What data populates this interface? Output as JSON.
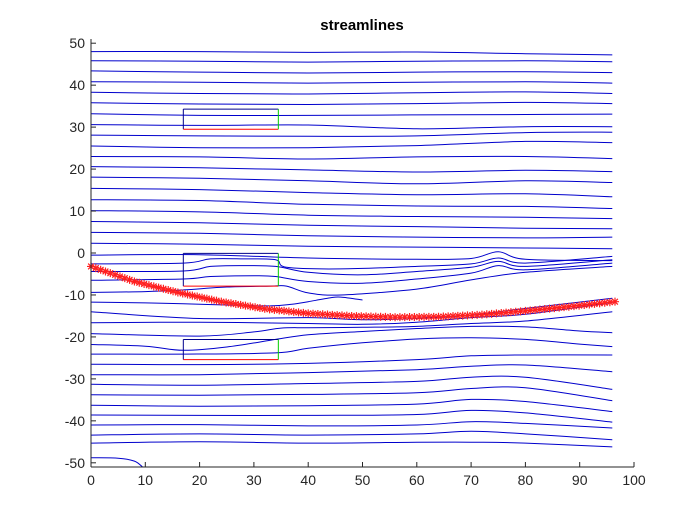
{
  "chart_data": {
    "type": "line",
    "title": "streamlines",
    "xlabel": "",
    "ylabel": "",
    "xlim": [
      0,
      100
    ],
    "ylim": [
      -51,
      51
    ],
    "grid": false,
    "x_ticks": [
      "0",
      "10",
      "20",
      "30",
      "40",
      "50",
      "60",
      "70",
      "80",
      "90",
      "100"
    ],
    "y_ticks": [
      "50",
      "40",
      "30",
      "20",
      "10",
      "0",
      "-10",
      "-20",
      "-30",
      "-40",
      "-50"
    ],
    "colors": {
      "streamline": "#0000cc",
      "path_marker": "#ff2020",
      "box_edge": "#00008b",
      "box_bottom": "#ff0000",
      "box_right": "#00cc00",
      "axes": "#262626"
    },
    "streamlines": [
      {
        "x": [
          0,
          20,
          40,
          60,
          80,
          96
        ],
        "y": [
          48,
          48,
          47.8,
          47.9,
          47.5,
          47.2
        ]
      },
      {
        "x": [
          0,
          20,
          40,
          60,
          80,
          96
        ],
        "y": [
          45.8,
          45.7,
          45.5,
          45.7,
          45.8,
          45.6
        ]
      },
      {
        "x": [
          0,
          20,
          40,
          60,
          80,
          96
        ],
        "y": [
          43.4,
          43.1,
          42.9,
          43.1,
          43.2,
          43.0
        ]
      },
      {
        "x": [
          0,
          20,
          40,
          60,
          80,
          96
        ],
        "y": [
          40.8,
          40.7,
          40.5,
          40.7,
          40.8,
          40.5
        ]
      },
      {
        "x": [
          0,
          20,
          40,
          60,
          80,
          96
        ],
        "y": [
          38.3,
          38.0,
          37.9,
          38.2,
          38.4,
          38.0
        ]
      },
      {
        "x": [
          0,
          20,
          40,
          60,
          80,
          96
        ],
        "y": [
          35.8,
          35.5,
          35.4,
          35.6,
          35.9,
          35.6
        ]
      },
      {
        "x": [
          0,
          20,
          40,
          60,
          80,
          96
        ],
        "y": [
          33.2,
          32.8,
          32.8,
          32.9,
          33.0,
          33.1
        ]
      },
      {
        "x": [
          0,
          20,
          40,
          60,
          80,
          96
        ],
        "y": [
          30.6,
          30.4,
          30.5,
          29.6,
          30.1,
          30.1
        ]
      },
      {
        "x": [
          0,
          20,
          40,
          60,
          80,
          96
        ],
        "y": [
          28.1,
          27.9,
          27.8,
          27.9,
          28.7,
          28.8
        ]
      },
      {
        "x": [
          0,
          20,
          40,
          60,
          80,
          96
        ],
        "y": [
          25.5,
          25.1,
          25.1,
          25.6,
          26.6,
          26.3
        ]
      },
      {
        "x": [
          0,
          20,
          40,
          60,
          80,
          96
        ],
        "y": [
          23.0,
          22.9,
          22.4,
          22.9,
          23.0,
          22.5
        ]
      },
      {
        "x": [
          0,
          20,
          40,
          60,
          80,
          96
        ],
        "y": [
          20.6,
          20.3,
          19.8,
          19.3,
          19.7,
          19.4
        ]
      },
      {
        "x": [
          0,
          20,
          40,
          60,
          80,
          96
        ],
        "y": [
          18.1,
          17.8,
          17.2,
          16.5,
          17.2,
          16.8
        ]
      },
      {
        "x": [
          0,
          20,
          40,
          60,
          80,
          96
        ],
        "y": [
          15.4,
          15.1,
          14.4,
          13.9,
          14.1,
          13.4
        ]
      },
      {
        "x": [
          0,
          20,
          40,
          60,
          80,
          96
        ],
        "y": [
          12.7,
          12.5,
          11.6,
          11.2,
          11.1,
          10.6
        ]
      },
      {
        "x": [
          0,
          20,
          40,
          60,
          80,
          96
        ],
        "y": [
          10.1,
          9.8,
          9.0,
          8.7,
          8.5,
          8.2
        ]
      },
      {
        "x": [
          0,
          20,
          40,
          60,
          80,
          96
        ],
        "y": [
          7.5,
          7.2,
          6.6,
          6.3,
          5.9,
          5.8
        ]
      },
      {
        "x": [
          0,
          20,
          40,
          60,
          80,
          96
        ],
        "y": [
          4.9,
          4.7,
          4.1,
          3.8,
          3.6,
          3.8
        ]
      },
      {
        "x": [
          0,
          20,
          40,
          60,
          80,
          96
        ],
        "y": [
          2.3,
          2.1,
          1.6,
          1.4,
          1.2,
          1.0
        ]
      },
      {
        "x": [
          0,
          20,
          40,
          60,
          70,
          75,
          80,
          96
        ],
        "y": [
          -0.5,
          -0.4,
          -1.2,
          -1.5,
          -1.3,
          0.3,
          -1.5,
          -1.8
        ]
      },
      {
        "x": [
          0,
          17,
          22,
          28,
          34,
          36,
          46,
          60,
          70,
          75,
          80,
          96
        ],
        "y": [
          -2.6,
          -2.4,
          -1.4,
          -1.4,
          -1.6,
          -3.4,
          -3.8,
          -3.2,
          -2.6,
          -1.2,
          -2.4,
          -0.8
        ]
      },
      {
        "x": [
          0,
          17,
          22,
          28,
          34,
          40,
          50,
          60,
          70,
          75,
          80,
          96
        ],
        "y": [
          -4.4,
          -4.3,
          -3.2,
          -3.0,
          -3.2,
          -4.6,
          -5.2,
          -4.4,
          -3.4,
          -2.0,
          -3.2,
          -1.6
        ]
      },
      {
        "x": [
          0,
          17,
          22,
          30,
          34,
          40,
          50,
          60,
          70,
          75,
          80,
          96
        ],
        "y": [
          -6.5,
          -6.2,
          -5.6,
          -5.4,
          -5.6,
          -6.8,
          -7.2,
          -6.2,
          -4.8,
          -3.0,
          -4.0,
          -2.4
        ]
      },
      {
        "x": [
          0,
          10,
          17,
          25,
          33,
          36,
          40,
          46,
          60,
          70,
          80,
          96
        ],
        "y": [
          -9.4,
          -9.2,
          -8.8,
          -8.1,
          -7.9,
          -7.9,
          -9.5,
          -10.0,
          -8.6,
          -6.4,
          -4.6,
          -3.2
        ]
      },
      {
        "x": [
          0,
          10,
          17,
          25,
          33,
          37,
          40,
          44,
          46,
          50
        ],
        "y": [
          -11.7,
          -11.9,
          -12.1,
          -12.4,
          -12.6,
          -12.2,
          -11.6,
          -10.7,
          -10.5,
          -11.2
        ]
      },
      {
        "x": [
          0,
          20,
          40,
          50,
          60,
          70,
          80,
          96
        ],
        "y": [
          -14.0,
          -15.6,
          -15.4,
          -15.9,
          -15.6,
          -14.8,
          -13.2,
          -10.8
        ]
      },
      {
        "x": [
          0,
          20,
          40,
          50,
          60,
          70,
          80,
          96
        ],
        "y": [
          -16.6,
          -16.5,
          -16.8,
          -17.0,
          -16.5,
          -15.4,
          -14.6,
          -11.8
        ]
      },
      {
        "x": [
          0,
          20,
          30,
          35,
          40,
          50,
          60,
          70,
          80,
          96
        ],
        "y": [
          -19.2,
          -19.8,
          -18.8,
          -17.9,
          -17.8,
          -17.7,
          -17.5,
          -16.8,
          -16.2,
          -14.0
        ]
      },
      {
        "x": [
          0,
          10,
          17,
          25,
          34,
          40,
          50,
          60,
          70,
          80,
          90,
          96
        ],
        "y": [
          -21.8,
          -22.2,
          -23.2,
          -22.4,
          -20.6,
          -19.5,
          -18.7,
          -18.0,
          -17.5,
          -17.6,
          -18.6,
          -19.0
        ]
      },
      {
        "x": [
          0,
          17,
          34,
          40,
          50,
          60,
          70,
          80,
          90,
          96
        ],
        "y": [
          -24.1,
          -24.1,
          -23.8,
          -22.7,
          -21.4,
          -20.5,
          -20.2,
          -20.6,
          -21.7,
          -22.3
        ]
      },
      {
        "x": [
          0,
          20,
          40,
          60,
          70,
          80,
          96
        ],
        "y": [
          -26.5,
          -26.6,
          -26.3,
          -25.4,
          -24.5,
          -24.3,
          -24.3
        ]
      },
      {
        "x": [
          0,
          20,
          40,
          60,
          70,
          80,
          96
        ],
        "y": [
          -29.0,
          -29.0,
          -28.5,
          -27.8,
          -27.0,
          -26.7,
          -28.3
        ]
      },
      {
        "x": [
          0,
          20,
          40,
          60,
          70,
          80,
          96
        ],
        "y": [
          -31.3,
          -31.5,
          -31.1,
          -30.6,
          -29.6,
          -29.6,
          -32.5
        ]
      },
      {
        "x": [
          0,
          20,
          40,
          60,
          70,
          80,
          96
        ],
        "y": [
          -33.8,
          -33.9,
          -33.7,
          -33.3,
          -32.3,
          -32.1,
          -35.2
        ]
      },
      {
        "x": [
          0,
          20,
          40,
          60,
          70,
          80,
          96
        ],
        "y": [
          -36.3,
          -36.5,
          -36.4,
          -36.0,
          -34.9,
          -35.4,
          -37.8
        ]
      },
      {
        "x": [
          0,
          20,
          40,
          60,
          70,
          80,
          96
        ],
        "y": [
          -38.6,
          -38.7,
          -38.7,
          -38.5,
          -37.5,
          -38.1,
          -40.3
        ]
      },
      {
        "x": [
          0,
          20,
          40,
          60,
          70,
          80,
          96
        ],
        "y": [
          -41.0,
          -40.9,
          -41.2,
          -41.0,
          -40.2,
          -40.6,
          -41.7
        ]
      },
      {
        "x": [
          0,
          20,
          40,
          60,
          70,
          80,
          96
        ],
        "y": [
          -43.4,
          -43.1,
          -43.4,
          -43.1,
          -42.5,
          -43.1,
          -44.5
        ]
      },
      {
        "x": [
          0,
          20,
          40,
          60,
          70,
          80,
          96
        ],
        "y": [
          -45.3,
          -45.0,
          -45.3,
          -45.1,
          -45.1,
          -45.3,
          -46.2
        ]
      },
      {
        "x": [
          0,
          5,
          8,
          9.5
        ],
        "y": [
          -48.8,
          -48.9,
          -49.6,
          -51.0
        ]
      }
    ],
    "path_markers": {
      "marker": "asterisk",
      "x": [
        0,
        8,
        16,
        24,
        32,
        40,
        48,
        56,
        64,
        72,
        80,
        88,
        96.5
      ],
      "y": [
        -3.2,
        -6.8,
        -9.4,
        -11.6,
        -13.3,
        -14.4,
        -15.0,
        -15.3,
        -15.2,
        -14.7,
        -13.8,
        -12.8,
        -11.6
      ]
    },
    "boxes": [
      {
        "x": [
          17,
          34.5
        ],
        "y": [
          29.5,
          34.3
        ]
      },
      {
        "x": [
          17,
          34.5
        ],
        "y": [
          -7.9,
          -0.1
        ]
      },
      {
        "x": [
          17,
          34.5
        ],
        "y": [
          -25.4,
          -20.6
        ]
      }
    ]
  }
}
